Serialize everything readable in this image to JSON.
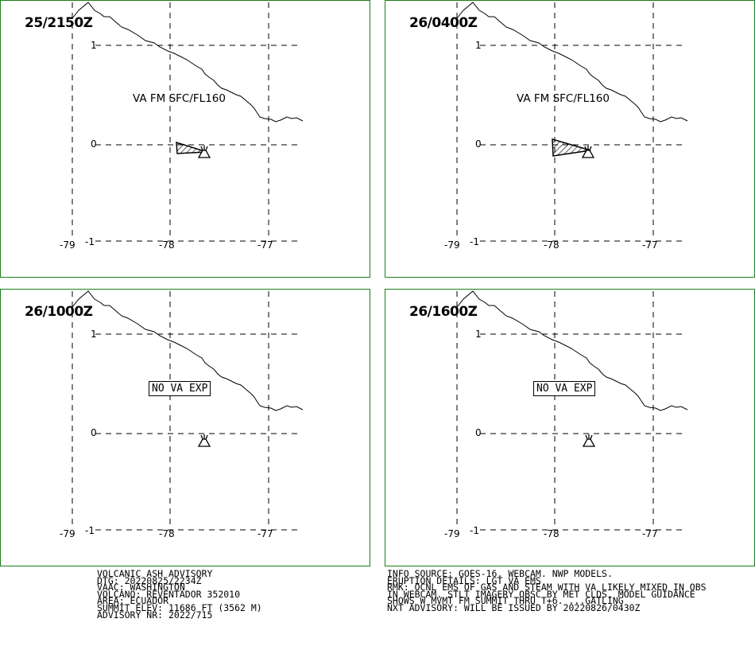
{
  "panels": [
    {
      "time": "25/2150Z",
      "label": "VA FM SFC/FL160",
      "boxed": false,
      "ash": true
    },
    {
      "time": "26/0400Z",
      "label": "VA FM SFC/FL160",
      "boxed": false,
      "ash": true
    },
    {
      "time": "26/1000Z",
      "label": "NO VA EXP",
      "boxed": true,
      "ash": false
    },
    {
      "time": "26/1600Z",
      "label": "NO VA EXP",
      "boxed": true,
      "ash": false
    }
  ],
  "axes": {
    "lon_labels": [
      "-79",
      "-78",
      "-77"
    ],
    "lat_labels": [
      "1",
      "0",
      "-1"
    ]
  },
  "advisory_left": [
    "VOLCANIC ASH ADVISORY",
    "DTG: 20220825/2234Z",
    "VAAC: WASHINGTON",
    "VOLCANO: REVENTADOR 352010",
    "AREA: ECUADOR",
    "SUMMIT ELEV: 11686 FT (3562 M)",
    "ADVISORY NR: 2022/715"
  ],
  "advisory_right": [
    "INFO SOURCE: GOES-16. WEBCAM. NWP MODELS.",
    "ERUPTION DETAILS: LGT VA EMS",
    "RMK: OCNL EMS OF GAS AND STEAM WITH VA LIKELY MIXED IN OBS",
    "IN WEBCAM. STLT IMAGERY OBSC BY MET CLDS. MODEL GUIDANCE",
    "SHOWS W MVMT FM SUMMIT THRU T+6. ...GATLING",
    "NXT ADVISORY: WILL BE ISSUED BY 20220826/0430Z"
  ],
  "colors": {
    "panel_border": "#1a7f1a",
    "lines": "#000000"
  }
}
